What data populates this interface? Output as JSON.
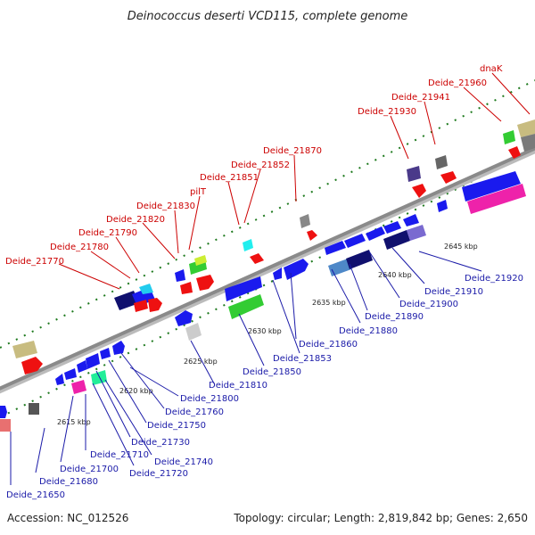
{
  "title": "Deinococcus deserti VCD115, complete genome",
  "footer": {
    "accession": "Accession: NC_012526",
    "topology": "Topology: circular; Length: 2,819,842 bp; Genes: 2,650"
  },
  "ticks": [
    "2615 kbp",
    "2620 kbp",
    "2625 kbp",
    "2630 kbp",
    "2635 kbp",
    "2640 kbp",
    "2645 kbp"
  ],
  "labels_forward": [
    "Deide_21770",
    "Deide_21780",
    "Deide_21790",
    "Deide_21820",
    "Deide_21830",
    "pilT",
    "Deide_21851",
    "Deide_21852",
    "Deide_21870",
    "Deide_21930",
    "Deide_21941",
    "Deide_21960",
    "dnaK"
  ],
  "labels_reverse": [
    "Deide_21650",
    "Deide_21680",
    "Deide_21700",
    "Deide_21720",
    "Deide_21710",
    "Deide_21740",
    "Deide_21730",
    "Deide_21750",
    "Deide_21760",
    "Deide_21800",
    "Deide_21810",
    "Deide_21850",
    "Deide_21853",
    "Deide_21860",
    "Deide_21880",
    "Deide_21890",
    "Deide_21900",
    "Deide_21910",
    "Deide_21920"
  ],
  "colors": {
    "backbone": "#8a8a8a",
    "forward_label": "#cc0000",
    "reverse_label": "#1a1aa8",
    "ruler": "#1e7a1e",
    "cds_blue": "#1a1aee",
    "cds_red": "#ee1111",
    "cds_navy": "#10106e",
    "cds_green": "#33cc33",
    "cds_magenta": "#ee22aa",
    "cds_tan": "#c8bc80"
  }
}
